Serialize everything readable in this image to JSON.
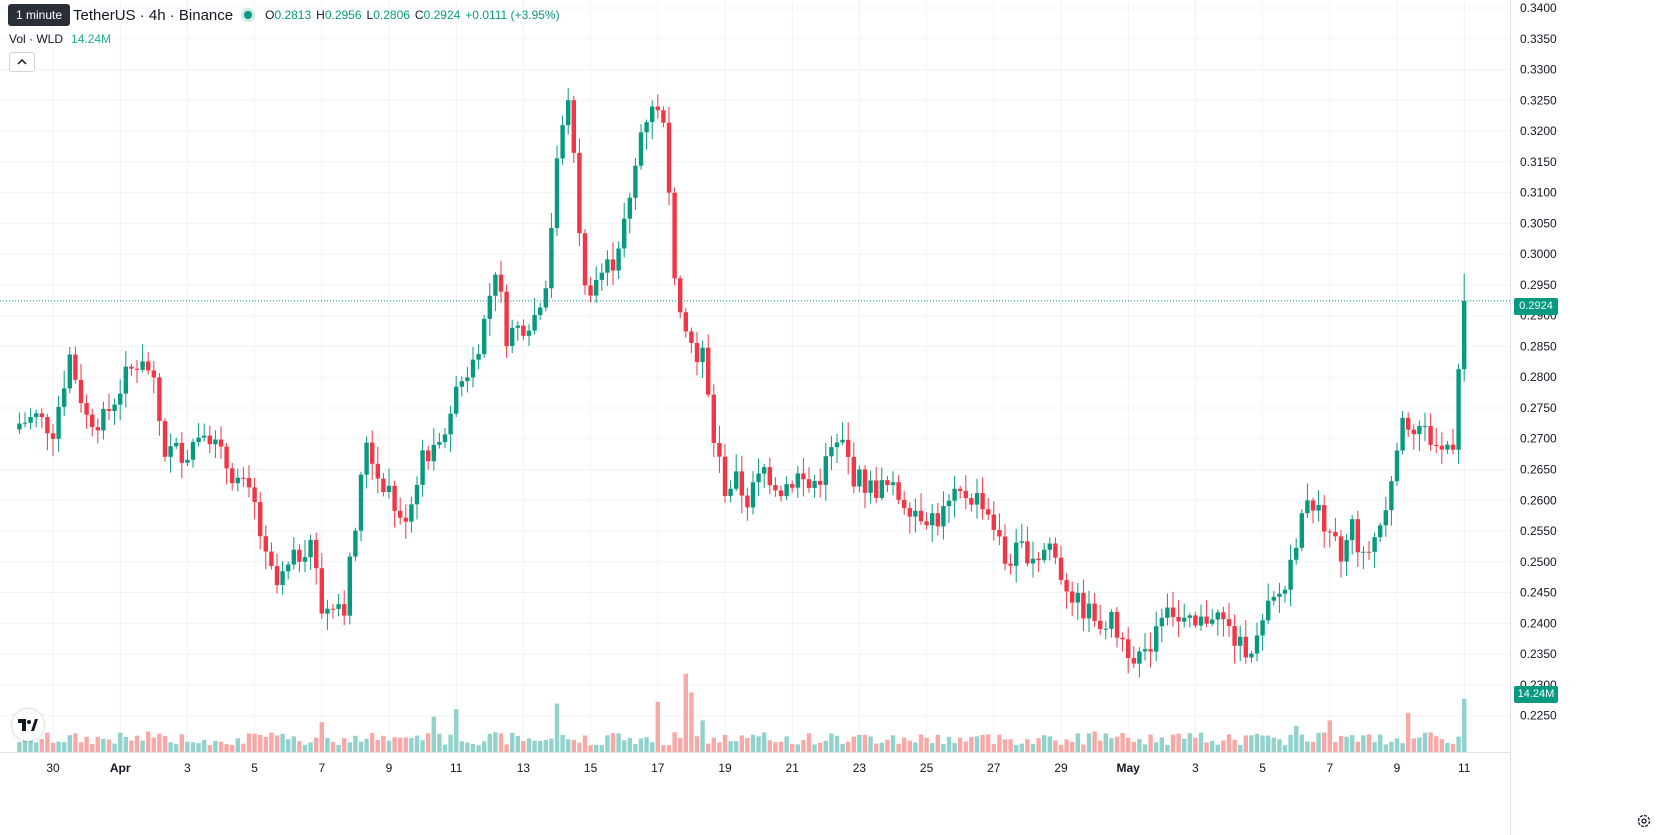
{
  "legend": {
    "tooltip": "1 minute",
    "symbol": "TetherUS · 4h · Binance",
    "open_label": "O",
    "open": "0.2813",
    "high_label": "H",
    "high": "0.2956",
    "low_label": "L",
    "low": "0.2806",
    "close_label": "C",
    "close": "0.2924",
    "change": "+0.0111 (+3.95%)"
  },
  "volume_legend": {
    "label": "Vol · WLD",
    "value": "14.24M"
  },
  "price_tag": "0.2924",
  "volume_tag": "14.24M",
  "colors": {
    "up": "#089981",
    "down": "#f23645",
    "vol_up": "#92d2cc",
    "vol_down": "#f7a9a7",
    "grid": "#f0f3fa",
    "axis_text": "#131722"
  },
  "icons": {
    "logo": "tradingview-logo-icon",
    "collapse": "chevron-up-icon",
    "settings": "gear-icon"
  },
  "chart_data": {
    "type": "candlestick",
    "timeframe": "4h",
    "series_name": "TetherUS",
    "y_axis": {
      "ylim": [
        0.2225,
        0.34
      ],
      "ticks": [
        "0.2250",
        "0.2300",
        "0.2350",
        "0.2400",
        "0.2450",
        "0.2500",
        "0.2550",
        "0.2600",
        "0.2650",
        "0.2700",
        "0.2750",
        "0.2800",
        "0.2850",
        "0.2900",
        "0.2950",
        "0.3000",
        "0.3050",
        "0.3100",
        "0.3150",
        "0.3200",
        "0.3250",
        "0.3300",
        "0.3350",
        "0.3400"
      ]
    },
    "x_axis": {
      "start_bar": -6,
      "ticks": [
        {
          "bar": 0,
          "label": "30"
        },
        {
          "bar": 12,
          "label": "Apr",
          "bold": true
        },
        {
          "bar": 24,
          "label": "3"
        },
        {
          "bar": 36,
          "label": "5"
        },
        {
          "bar": 48,
          "label": "7"
        },
        {
          "bar": 60,
          "label": "9"
        },
        {
          "bar": 72,
          "label": "11"
        },
        {
          "bar": 84,
          "label": "13"
        },
        {
          "bar": 96,
          "label": "15"
        },
        {
          "bar": 108,
          "label": "17"
        },
        {
          "bar": 120,
          "label": "19"
        },
        {
          "bar": 132,
          "label": "21"
        },
        {
          "bar": 144,
          "label": "23"
        },
        {
          "bar": 156,
          "label": "25"
        },
        {
          "bar": 168,
          "label": "27"
        },
        {
          "bar": 180,
          "label": "29"
        },
        {
          "bar": 192,
          "label": "May",
          "bold": true
        },
        {
          "bar": 204,
          "label": "3"
        },
        {
          "bar": 216,
          "label": "5"
        },
        {
          "bar": 228,
          "label": "7"
        },
        {
          "bar": 240,
          "label": "9"
        },
        {
          "bar": 252,
          "label": "11"
        }
      ]
    },
    "last_price": 0.2924,
    "close_path": [
      {
        "bar": -6,
        "close": 0.2725
      },
      {
        "bar": -3,
        "close": 0.2735
      },
      {
        "bar": 0,
        "close": 0.2715
      },
      {
        "bar": 3,
        "close": 0.2835
      },
      {
        "bar": 6,
        "close": 0.2735
      },
      {
        "bar": 9,
        "close": 0.273
      },
      {
        "bar": 13,
        "close": 0.28
      },
      {
        "bar": 16,
        "close": 0.2835
      },
      {
        "bar": 18,
        "close": 0.278
      },
      {
        "bar": 20,
        "close": 0.268
      },
      {
        "bar": 24,
        "close": 0.268
      },
      {
        "bar": 27,
        "close": 0.2725
      },
      {
        "bar": 30,
        "close": 0.267
      },
      {
        "bar": 34,
        "close": 0.262
      },
      {
        "bar": 36,
        "close": 0.259
      },
      {
        "bar": 38,
        "close": 0.25
      },
      {
        "bar": 40,
        "close": 0.246
      },
      {
        "bar": 43,
        "close": 0.25
      },
      {
        "bar": 46,
        "close": 0.254
      },
      {
        "bar": 48,
        "close": 0.242
      },
      {
        "bar": 50,
        "close": 0.244
      },
      {
        "bar": 52,
        "close": 0.243
      },
      {
        "bar": 54,
        "close": 0.2555
      },
      {
        "bar": 56,
        "close": 0.27
      },
      {
        "bar": 58,
        "close": 0.264
      },
      {
        "bar": 60,
        "close": 0.262
      },
      {
        "bar": 62,
        "close": 0.256
      },
      {
        "bar": 64,
        "close": 0.26
      },
      {
        "bar": 66,
        "close": 0.268
      },
      {
        "bar": 69,
        "close": 0.268
      },
      {
        "bar": 72,
        "close": 0.278
      },
      {
        "bar": 75,
        "close": 0.2825
      },
      {
        "bar": 77,
        "close": 0.289
      },
      {
        "bar": 79,
        "close": 0.298
      },
      {
        "bar": 81,
        "close": 0.287
      },
      {
        "bar": 83,
        "close": 0.288
      },
      {
        "bar": 86,
        "close": 0.29
      },
      {
        "bar": 88,
        "close": 0.296
      },
      {
        "bar": 90,
        "close": 0.314
      },
      {
        "bar": 92,
        "close": 0.326
      },
      {
        "bar": 93,
        "close": 0.315
      },
      {
        "bar": 95,
        "close": 0.294
      },
      {
        "bar": 97,
        "close": 0.296
      },
      {
        "bar": 100,
        "close": 0.299
      },
      {
        "bar": 103,
        "close": 0.308
      },
      {
        "bar": 105,
        "close": 0.32
      },
      {
        "bar": 107,
        "close": 0.325
      },
      {
        "bar": 109,
        "close": 0.32
      },
      {
        "bar": 111,
        "close": 0.298
      },
      {
        "bar": 113,
        "close": 0.287
      },
      {
        "bar": 116,
        "close": 0.283
      },
      {
        "bar": 118,
        "close": 0.27
      },
      {
        "bar": 120,
        "close": 0.262
      },
      {
        "bar": 122,
        "close": 0.263
      },
      {
        "bar": 124,
        "close": 0.26
      },
      {
        "bar": 127,
        "close": 0.265
      },
      {
        "bar": 130,
        "close": 0.262
      },
      {
        "bar": 133,
        "close": 0.264
      },
      {
        "bar": 135,
        "close": 0.262
      },
      {
        "bar": 137,
        "close": 0.264
      },
      {
        "bar": 139,
        "close": 0.268
      },
      {
        "bar": 141,
        "close": 0.269
      },
      {
        "bar": 143,
        "close": 0.264
      },
      {
        "bar": 146,
        "close": 0.262
      },
      {
        "bar": 149,
        "close": 0.262
      },
      {
        "bar": 152,
        "close": 0.26
      },
      {
        "bar": 155,
        "close": 0.258
      },
      {
        "bar": 158,
        "close": 0.257
      },
      {
        "bar": 161,
        "close": 0.26
      },
      {
        "bar": 163,
        "close": 0.261
      },
      {
        "bar": 166,
        "close": 0.26
      },
      {
        "bar": 168,
        "close": 0.256
      },
      {
        "bar": 170,
        "close": 0.25
      },
      {
        "bar": 173,
        "close": 0.252
      },
      {
        "bar": 176,
        "close": 0.251
      },
      {
        "bar": 178,
        "close": 0.253
      },
      {
        "bar": 180,
        "close": 0.248
      },
      {
        "bar": 183,
        "close": 0.243
      },
      {
        "bar": 186,
        "close": 0.241
      },
      {
        "bar": 189,
        "close": 0.24
      },
      {
        "bar": 192,
        "close": 0.236
      },
      {
        "bar": 195,
        "close": 0.234
      },
      {
        "bar": 197,
        "close": 0.24
      },
      {
        "bar": 199,
        "close": 0.244
      },
      {
        "bar": 201,
        "close": 0.24
      },
      {
        "bar": 204,
        "close": 0.239
      },
      {
        "bar": 207,
        "close": 0.242
      },
      {
        "bar": 209,
        "close": 0.24
      },
      {
        "bar": 212,
        "close": 0.236
      },
      {
        "bar": 215,
        "close": 0.237
      },
      {
        "bar": 217,
        "close": 0.242
      },
      {
        "bar": 220,
        "close": 0.246
      },
      {
        "bar": 222,
        "close": 0.254
      },
      {
        "bar": 224,
        "close": 0.261
      },
      {
        "bar": 226,
        "close": 0.258
      },
      {
        "bar": 228,
        "close": 0.255
      },
      {
        "bar": 230,
        "close": 0.25
      },
      {
        "bar": 232,
        "close": 0.256
      },
      {
        "bar": 234,
        "close": 0.25
      },
      {
        "bar": 236,
        "close": 0.254
      },
      {
        "bar": 238,
        "close": 0.258
      },
      {
        "bar": 240,
        "close": 0.27
      },
      {
        "bar": 242,
        "close": 0.273
      },
      {
        "bar": 244,
        "close": 0.272
      },
      {
        "bar": 246,
        "close": 0.27
      },
      {
        "bar": 248,
        "close": 0.268
      },
      {
        "bar": 250,
        "close": 0.27
      },
      {
        "bar": 251,
        "close": 0.2813
      },
      {
        "bar": 252,
        "close": 0.2924
      }
    ],
    "volume_peaks": [
      {
        "bar": 17,
        "volume": 5.5
      },
      {
        "bar": 48,
        "volume": 8.0
      },
      {
        "bar": 68,
        "volume": 9.5
      },
      {
        "bar": 72,
        "volume": 11.5
      },
      {
        "bar": 90,
        "volume": 13.0
      },
      {
        "bar": 108,
        "volume": 13.5
      },
      {
        "bar": 113,
        "volume": 21.0
      },
      {
        "bar": 114,
        "volume": 16.0
      },
      {
        "bar": 116,
        "volume": 8.5
      },
      {
        "bar": 186,
        "volume": 5.5
      },
      {
        "bar": 222,
        "volume": 7.0
      },
      {
        "bar": 228,
        "volume": 8.5
      },
      {
        "bar": 242,
        "volume": 10.5
      },
      {
        "bar": 252,
        "volume": 14.24
      }
    ]
  }
}
